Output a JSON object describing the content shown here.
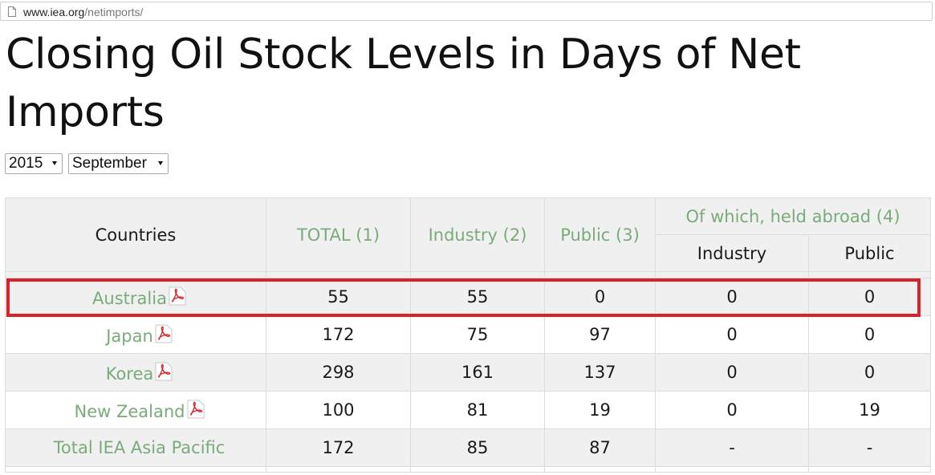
{
  "browser": {
    "url_host": "www.iea.org",
    "url_path": "/netimports/"
  },
  "page": {
    "title": "Closing Oil Stock Levels in Days of Net Imports"
  },
  "filters": {
    "year": "2015",
    "month": "September"
  },
  "table": {
    "headers": {
      "countries": "Countries",
      "total": "TOTAL (1)",
      "industry": "Industry (2)",
      "public": "Public (3)",
      "held_abroad": "Of which, held abroad (4)",
      "held_abroad_industry": "Industry",
      "held_abroad_public": "Public"
    },
    "rows": [
      {
        "country": "Australia",
        "total": "55",
        "industry": "55",
        "public": "0",
        "abroad_industry": "0",
        "abroad_public": "0",
        "has_pdf": true,
        "highlighted": true
      },
      {
        "country": "Japan",
        "total": "172",
        "industry": "75",
        "public": "97",
        "abroad_industry": "0",
        "abroad_public": "0",
        "has_pdf": true,
        "highlighted": false
      },
      {
        "country": "Korea",
        "total": "298",
        "industry": "161",
        "public": "137",
        "abroad_industry": "0",
        "abroad_public": "0",
        "has_pdf": true,
        "highlighted": false
      },
      {
        "country": "New Zealand",
        "total": "100",
        "industry": "81",
        "public": "19",
        "abroad_industry": "0",
        "abroad_public": "19",
        "has_pdf": true,
        "highlighted": false
      },
      {
        "country": "Total IEA Asia Pacific",
        "total": "172",
        "industry": "85",
        "public": "87",
        "abroad_industry": "-",
        "abroad_public": "-",
        "has_pdf": false,
        "highlighted": false
      }
    ]
  },
  "colors": {
    "link": "#7aab78",
    "highlight": "#d8232a",
    "header_bg": "#f0f0f0",
    "pdf_icon": "#d8232a"
  },
  "icons": {
    "url": "page-icon",
    "pdf": "pdf-icon",
    "select": "caret-down-icon"
  }
}
